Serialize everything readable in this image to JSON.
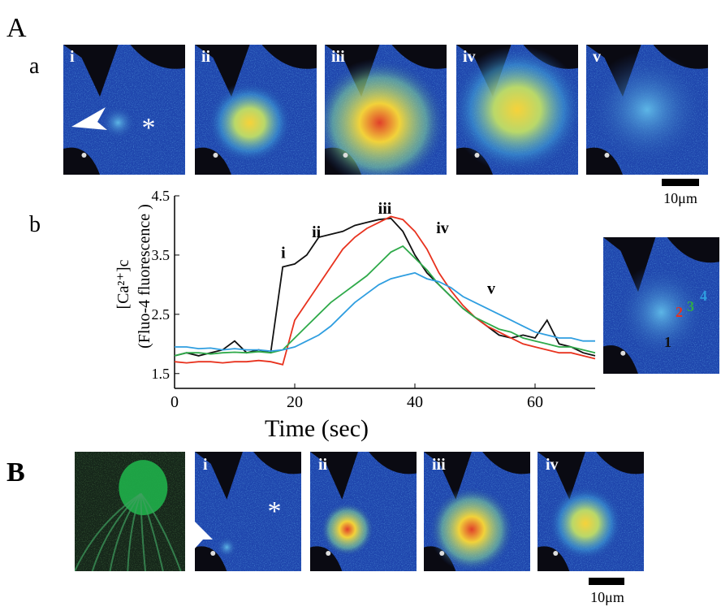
{
  "figure": {
    "panel_A": "A",
    "sub_a": "a",
    "sub_b": "b",
    "panel_B": "B",
    "a_images": [
      "i",
      "ii",
      "iii",
      "iv",
      "v"
    ],
    "B_images": [
      "i",
      "ii",
      "iii",
      "iv"
    ],
    "asterisk": "*",
    "scale_bar_a": "10μm",
    "scale_bar_B": "10μm"
  },
  "chart_data": {
    "type": "line",
    "xlabel": "Time (sec)",
    "ylabel": [
      "[Ca²⁺]c",
      "(Fluo-4 fluorescence )"
    ],
    "x": [
      0,
      2,
      4,
      6,
      8,
      10,
      12,
      14,
      16,
      18,
      20,
      22,
      24,
      26,
      28,
      30,
      32,
      34,
      36,
      38,
      40,
      42,
      44,
      46,
      48,
      50,
      52,
      54,
      56,
      58,
      60,
      62,
      64,
      66,
      68,
      70
    ],
    "series": [
      {
        "name": "1",
        "color": "#111111",
        "values": [
          1.8,
          1.85,
          1.8,
          1.85,
          1.9,
          2.05,
          1.85,
          1.9,
          1.85,
          3.3,
          3.35,
          3.5,
          3.8,
          3.85,
          3.9,
          4.0,
          4.05,
          4.1,
          4.12,
          3.9,
          3.5,
          3.2,
          3.0,
          2.8,
          2.6,
          2.45,
          2.3,
          2.15,
          2.1,
          2.15,
          2.1,
          2.4,
          2.0,
          1.95,
          1.85,
          1.8
        ]
      },
      {
        "name": "2",
        "color": "#e8321e",
        "values": [
          1.7,
          1.68,
          1.7,
          1.7,
          1.68,
          1.7,
          1.7,
          1.72,
          1.7,
          1.65,
          2.4,
          2.7,
          3.0,
          3.3,
          3.6,
          3.8,
          3.95,
          4.05,
          4.15,
          4.1,
          3.9,
          3.6,
          3.2,
          2.9,
          2.65,
          2.45,
          2.3,
          2.2,
          2.1,
          2.0,
          1.95,
          1.9,
          1.85,
          1.85,
          1.8,
          1.75
        ]
      },
      {
        "name": "3",
        "color": "#2faa4a",
        "values": [
          1.8,
          1.85,
          1.85,
          1.83,
          1.85,
          1.86,
          1.85,
          1.87,
          1.85,
          1.9,
          2.1,
          2.3,
          2.5,
          2.7,
          2.85,
          3.0,
          3.15,
          3.35,
          3.55,
          3.65,
          3.45,
          3.25,
          3.0,
          2.8,
          2.6,
          2.45,
          2.35,
          2.25,
          2.2,
          2.1,
          2.05,
          2.0,
          1.95,
          1.95,
          1.9,
          1.85
        ]
      },
      {
        "name": "4",
        "color": "#2f9ee0",
        "values": [
          1.95,
          1.95,
          1.92,
          1.93,
          1.9,
          1.92,
          1.9,
          1.9,
          1.88,
          1.9,
          1.95,
          2.05,
          2.15,
          2.3,
          2.5,
          2.7,
          2.85,
          3.0,
          3.1,
          3.15,
          3.2,
          3.1,
          3.05,
          2.95,
          2.8,
          2.7,
          2.6,
          2.5,
          2.4,
          2.3,
          2.2,
          2.15,
          2.1,
          2.1,
          2.05,
          2.05
        ]
      }
    ],
    "xlim": [
      0,
      70
    ],
    "ylim": [
      1.25,
      4.5
    ],
    "xticks": [
      0,
      20,
      40,
      60
    ],
    "yticks": [
      1.5,
      2.5,
      3.5,
      4.5
    ],
    "annotations": [
      {
        "text": "i",
        "x": 18.1,
        "y": 3.45
      },
      {
        "text": "ii",
        "x": 23.6,
        "y": 3.8
      },
      {
        "text": "iii",
        "x": 35,
        "y": 4.2
      },
      {
        "text": "iv",
        "x": 44.6,
        "y": 3.87
      },
      {
        "text": "v",
        "x": 52.7,
        "y": 2.85
      }
    ]
  }
}
